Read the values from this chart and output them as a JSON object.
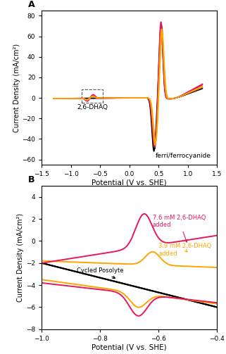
{
  "panel_A": {
    "title": "A",
    "xlabel": "Potential (V vs. SHE)",
    "ylabel": "Current Density (mA/cm²)",
    "xlim": [
      -1.5,
      1.5
    ],
    "ylim": [
      -65,
      85
    ],
    "yticks": [
      -60,
      -40,
      -20,
      0,
      20,
      40,
      60,
      80
    ],
    "xticks": [
      -1.5,
      -1.0,
      -0.5,
      0.0,
      0.5,
      1.0,
      1.5
    ],
    "label_ferri": "ferri/ferrocyanide",
    "label_dhaq": "2,6-DHAQ",
    "color_black": "#000000",
    "color_crimson": "#E8175C",
    "color_orange": "#FFA500"
  },
  "panel_B": {
    "title": "B",
    "xlabel": "Potential (V vs. SHE)",
    "ylabel": "Current Density (mA/cm²)",
    "xlim": [
      -1.0,
      -0.4
    ],
    "ylim": [
      -8,
      5
    ],
    "yticks": [
      -8,
      -6,
      -4,
      -2,
      0,
      2,
      4
    ],
    "xticks": [
      -1.0,
      -0.8,
      -0.6,
      -0.4
    ],
    "label_cycled": "Cycled Posolyte",
    "label_39mM": "3.9 mM 2,6-DHAQ\nadded",
    "label_76mM": "7.6 mM 2,6-DHAQ\nadded",
    "color_black": "#000000",
    "color_orange": "#FFA500",
    "color_crimson": "#E8175C"
  }
}
